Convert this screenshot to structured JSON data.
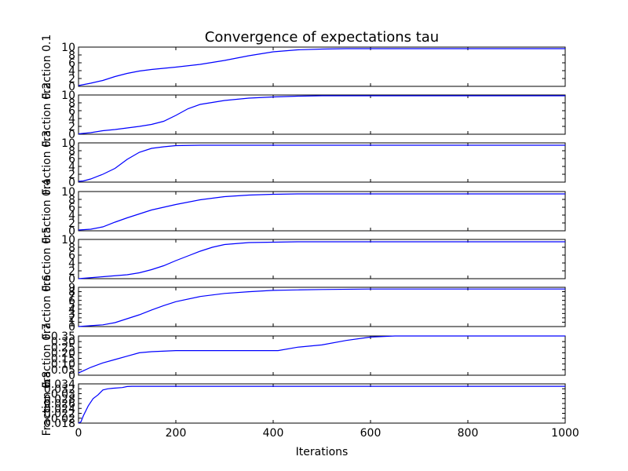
{
  "chart_data": {
    "type": "line",
    "title": "Convergence of expectations tau",
    "xlabel": "Iterations",
    "xlim": [
      0,
      1000
    ],
    "xticks": [
      0,
      200,
      400,
      600,
      800,
      1000
    ],
    "subplots": [
      {
        "ylabel": "Fraction 0.1",
        "ylim": [
          0,
          10
        ],
        "yticks": [
          0,
          2,
          4,
          6,
          8,
          10
        ],
        "x": [
          0,
          25,
          50,
          75,
          100,
          125,
          150,
          175,
          200,
          250,
          300,
          350,
          400,
          450,
          500,
          550,
          600,
          700,
          800,
          900,
          1000
        ],
        "y": [
          0.2,
          0.8,
          1.5,
          2.5,
          3.3,
          3.9,
          4.3,
          4.6,
          4.9,
          5.6,
          6.6,
          7.8,
          8.8,
          9.3,
          9.5,
          9.6,
          9.6,
          9.6,
          9.6,
          9.6,
          9.6
        ]
      },
      {
        "ylabel": "Fraction 0.2",
        "ylim": [
          0,
          10
        ],
        "yticks": [
          0,
          2,
          4,
          6,
          8,
          10
        ],
        "x": [
          0,
          25,
          50,
          75,
          100,
          125,
          150,
          175,
          200,
          225,
          250,
          300,
          350,
          400,
          450,
          500,
          600,
          700,
          800,
          900,
          1000
        ],
        "y": [
          0.1,
          0.4,
          0.9,
          1.2,
          1.6,
          2.0,
          2.5,
          3.3,
          4.8,
          6.5,
          7.6,
          8.6,
          9.2,
          9.5,
          9.7,
          9.8,
          9.8,
          9.8,
          9.8,
          9.8,
          9.8
        ]
      },
      {
        "ylabel": "Fraction 0.3",
        "ylim": [
          0,
          10
        ],
        "yticks": [
          0,
          2,
          4,
          6,
          8,
          10
        ],
        "x": [
          0,
          10,
          25,
          50,
          75,
          100,
          125,
          150,
          175,
          200,
          250,
          300,
          400,
          500,
          600,
          700,
          800,
          900,
          1000
        ],
        "y": [
          0.2,
          0.3,
          0.8,
          2.0,
          3.5,
          5.8,
          7.6,
          8.6,
          9.0,
          9.3,
          9.4,
          9.4,
          9.4,
          9.4,
          9.4,
          9.4,
          9.4,
          9.4,
          9.4
        ]
      },
      {
        "ylabel": "Fraction 0.4",
        "ylim": [
          0,
          10
        ],
        "yticks": [
          0,
          2,
          4,
          6,
          8,
          10
        ],
        "x": [
          0,
          25,
          50,
          75,
          100,
          125,
          150,
          175,
          200,
          250,
          300,
          350,
          400,
          450,
          500,
          600,
          700,
          800,
          900,
          1000
        ],
        "y": [
          0.2,
          0.4,
          1.0,
          2.2,
          3.3,
          4.3,
          5.3,
          6.0,
          6.7,
          7.9,
          8.7,
          9.1,
          9.3,
          9.4,
          9.4,
          9.4,
          9.4,
          9.4,
          9.4,
          9.4
        ]
      },
      {
        "ylabel": "Fraction 0.5",
        "ylim": [
          0,
          10
        ],
        "yticks": [
          0,
          2,
          4,
          6,
          8,
          10
        ],
        "x": [
          0,
          50,
          100,
          125,
          150,
          175,
          200,
          225,
          250,
          275,
          300,
          350,
          400,
          450,
          500,
          600,
          700,
          800,
          900,
          1000
        ],
        "y": [
          0.0,
          0.5,
          1.0,
          1.5,
          2.3,
          3.3,
          4.6,
          5.8,
          7.0,
          8.0,
          8.7,
          9.2,
          9.3,
          9.4,
          9.4,
          9.4,
          9.4,
          9.4,
          9.4,
          9.4
        ]
      },
      {
        "ylabel": "Fraction 0.6",
        "ylim": [
          0,
          9
        ],
        "yticks": [
          0,
          1,
          2,
          3,
          4,
          5,
          6,
          7,
          8,
          9
        ],
        "x": [
          0,
          25,
          50,
          75,
          100,
          125,
          150,
          175,
          200,
          250,
          300,
          350,
          400,
          450,
          500,
          600,
          700,
          800,
          900,
          1000
        ],
        "y": [
          0.0,
          0.2,
          0.4,
          0.9,
          1.8,
          2.7,
          3.8,
          4.8,
          5.7,
          6.9,
          7.6,
          8.0,
          8.3,
          8.4,
          8.5,
          8.6,
          8.6,
          8.6,
          8.6,
          8.6
        ]
      },
      {
        "ylabel": "Fraction 0.7",
        "ylim": [
          0.0,
          0.35
        ],
        "yticks": [
          0.0,
          0.05,
          0.1,
          0.15,
          0.2,
          0.25,
          0.3,
          0.35
        ],
        "x": [
          0,
          10,
          25,
          50,
          75,
          100,
          125,
          150,
          200,
          250,
          300,
          350,
          400,
          410,
          450,
          500,
          550,
          600,
          650,
          700,
          800,
          900,
          1000
        ],
        "y": [
          0.02,
          0.04,
          0.07,
          0.11,
          0.14,
          0.17,
          0.2,
          0.21,
          0.22,
          0.22,
          0.22,
          0.22,
          0.22,
          0.22,
          0.25,
          0.27,
          0.31,
          0.34,
          0.35,
          0.35,
          0.35,
          0.35,
          0.35
        ]
      },
      {
        "ylabel": "Fraction 0.8",
        "ylim": [
          0.018,
          0.034
        ],
        "yticks": [
          0.018,
          0.02,
          0.022,
          0.024,
          0.026,
          0.028,
          0.03,
          0.032,
          0.034
        ],
        "x": [
          0,
          5,
          10,
          20,
          30,
          40,
          50,
          60,
          70,
          90,
          100,
          110,
          150,
          200,
          400,
          600,
          800,
          1000
        ],
        "y": [
          0.018,
          0.0185,
          0.021,
          0.025,
          0.028,
          0.0295,
          0.0315,
          0.032,
          0.0322,
          0.0325,
          0.0329,
          0.033,
          0.033,
          0.033,
          0.033,
          0.033,
          0.033,
          0.033
        ]
      }
    ]
  }
}
